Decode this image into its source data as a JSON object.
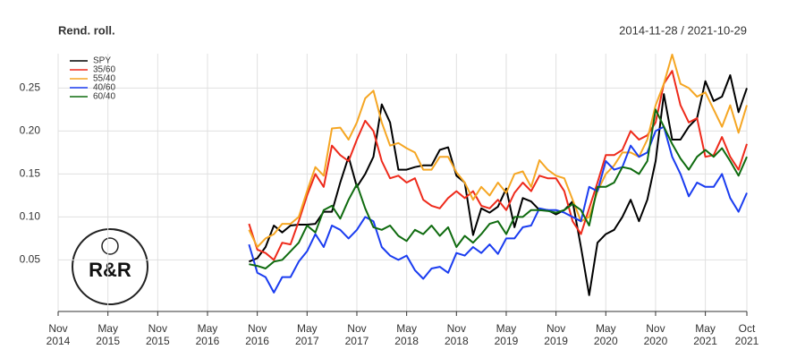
{
  "chart_data": {
    "type": "line",
    "title": "Rend. roll.",
    "subtitle": "2014-11-28 / 2021-10-29",
    "x": [
      "2016-10",
      "2016-11",
      "2016-12",
      "2017-01",
      "2017-02",
      "2017-03",
      "2017-04",
      "2017-05",
      "2017-06",
      "2017-07",
      "2017-08",
      "2017-09",
      "2017-10",
      "2017-11",
      "2017-12",
      "2018-01",
      "2018-02",
      "2018-03",
      "2018-04",
      "2018-05",
      "2018-06",
      "2018-07",
      "2018-08",
      "2018-09",
      "2018-10",
      "2018-11",
      "2018-12",
      "2019-01",
      "2019-02",
      "2019-03",
      "2019-04",
      "2019-05",
      "2019-06",
      "2019-07",
      "2019-08",
      "2019-09",
      "2019-10",
      "2019-11",
      "2019-12",
      "2020-01",
      "2020-02",
      "2020-03",
      "2020-04",
      "2020-05",
      "2020-06",
      "2020-07",
      "2020-08",
      "2020-09",
      "2020-10",
      "2020-11",
      "2020-12",
      "2021-01",
      "2021-02",
      "2021-03",
      "2021-04",
      "2021-05",
      "2021-06",
      "2021-07",
      "2021-08",
      "2021-09",
      "2021-10"
    ],
    "series": [
      {
        "name": "SPY",
        "color": "#000000",
        "values": [
          0.048,
          0.052,
          0.065,
          0.09,
          0.082,
          0.09,
          0.091,
          0.091,
          0.092,
          0.106,
          0.106,
          0.14,
          0.17,
          0.135,
          0.15,
          0.17,
          0.231,
          0.21,
          0.155,
          0.155,
          0.158,
          0.16,
          0.16,
          0.178,
          0.181,
          0.148,
          0.14,
          0.079,
          0.11,
          0.105,
          0.112,
          0.133,
          0.088,
          0.122,
          0.118,
          0.108,
          0.108,
          0.103,
          0.108,
          0.118,
          0.065,
          0.009,
          0.07,
          0.08,
          0.085,
          0.1,
          0.12,
          0.095,
          0.12,
          0.165,
          0.243,
          0.19,
          0.19,
          0.205,
          0.215,
          0.258,
          0.235,
          0.24,
          0.265,
          0.222,
          0.25
        ]
      },
      {
        "name": "35/60",
        "color": "#ee2a1b",
        "values": [
          0.092,
          0.062,
          0.058,
          0.05,
          0.07,
          0.068,
          0.095,
          0.125,
          0.15,
          0.135,
          0.183,
          0.172,
          0.165,
          0.19,
          0.212,
          0.2,
          0.165,
          0.145,
          0.148,
          0.14,
          0.145,
          0.12,
          0.113,
          0.11,
          0.122,
          0.13,
          0.122,
          0.13,
          0.113,
          0.11,
          0.12,
          0.108,
          0.128,
          0.14,
          0.13,
          0.148,
          0.145,
          0.145,
          0.13,
          0.095,
          0.08,
          0.11,
          0.14,
          0.172,
          0.172,
          0.178,
          0.2,
          0.19,
          0.195,
          0.21,
          0.255,
          0.27,
          0.23,
          0.21,
          0.215,
          0.17,
          0.172,
          0.193,
          0.17,
          0.155,
          0.185
        ]
      },
      {
        "name": "55/40",
        "color": "#f5a623",
        "values": [
          0.085,
          0.065,
          0.075,
          0.08,
          0.092,
          0.092,
          0.1,
          0.13,
          0.158,
          0.148,
          0.203,
          0.204,
          0.19,
          0.21,
          0.238,
          0.247,
          0.21,
          0.183,
          0.186,
          0.18,
          0.175,
          0.155,
          0.155,
          0.17,
          0.17,
          0.152,
          0.14,
          0.12,
          0.135,
          0.125,
          0.14,
          0.128,
          0.15,
          0.153,
          0.135,
          0.166,
          0.155,
          0.148,
          0.145,
          0.12,
          0.095,
          0.1,
          0.13,
          0.15,
          0.16,
          0.175,
          0.175,
          0.17,
          0.19,
          0.23,
          0.255,
          0.289,
          0.255,
          0.25,
          0.24,
          0.245,
          0.225,
          0.205,
          0.23,
          0.198,
          0.23
        ]
      },
      {
        "name": "40/60",
        "color": "#1a3cf0",
        "values": [
          0.068,
          0.035,
          0.03,
          0.012,
          0.03,
          0.03,
          0.048,
          0.06,
          0.08,
          0.065,
          0.09,
          0.085,
          0.075,
          0.085,
          0.1,
          0.095,
          0.065,
          0.055,
          0.05,
          0.055,
          0.038,
          0.028,
          0.04,
          0.042,
          0.035,
          0.058,
          0.055,
          0.065,
          0.058,
          0.068,
          0.057,
          0.075,
          0.075,
          0.088,
          0.09,
          0.11,
          0.108,
          0.108,
          0.105,
          0.1,
          0.095,
          0.135,
          0.13,
          0.165,
          0.155,
          0.158,
          0.183,
          0.17,
          0.175,
          0.2,
          0.205,
          0.17,
          0.15,
          0.124,
          0.14,
          0.135,
          0.135,
          0.15,
          0.122,
          0.106,
          0.128
        ]
      },
      {
        "name": "60/40",
        "color": "#0f6b0f",
        "values": [
          0.045,
          0.043,
          0.04,
          0.048,
          0.05,
          0.06,
          0.07,
          0.09,
          0.082,
          0.108,
          0.113,
          0.098,
          0.12,
          0.138,
          0.11,
          0.088,
          0.085,
          0.09,
          0.078,
          0.072,
          0.085,
          0.08,
          0.09,
          0.078,
          0.088,
          0.065,
          0.078,
          0.07,
          0.08,
          0.092,
          0.095,
          0.08,
          0.1,
          0.1,
          0.108,
          0.108,
          0.107,
          0.105,
          0.108,
          0.115,
          0.108,
          0.09,
          0.135,
          0.135,
          0.14,
          0.158,
          0.156,
          0.15,
          0.165,
          0.225,
          0.205,
          0.185,
          0.168,
          0.155,
          0.17,
          0.178,
          0.17,
          0.18,
          0.165,
          0.148,
          0.17
        ]
      }
    ],
    "xlim": [
      "2014-11",
      "2021-10"
    ],
    "xticks": [
      {
        "value": "2014-11",
        "label": "Nov\n2014"
      },
      {
        "value": "2015-05",
        "label": "May\n2015"
      },
      {
        "value": "2015-11",
        "label": "Nov\n2015"
      },
      {
        "value": "2016-05",
        "label": "May\n2016"
      },
      {
        "value": "2016-11",
        "label": "Nov\n2016"
      },
      {
        "value": "2017-05",
        "label": "May\n2017"
      },
      {
        "value": "2017-11",
        "label": "Nov\n2017"
      },
      {
        "value": "2018-05",
        "label": "May\n2018"
      },
      {
        "value": "2018-11",
        "label": "Nov\n2018"
      },
      {
        "value": "2019-05",
        "label": "May\n2019"
      },
      {
        "value": "2019-11",
        "label": "Nov\n2019"
      },
      {
        "value": "2020-05",
        "label": "May\n2020"
      },
      {
        "value": "2020-11",
        "label": "Nov\n2020"
      },
      {
        "value": "2021-05",
        "label": "May\n2021"
      },
      {
        "value": "2021-10",
        "label": "Oct\n2021"
      }
    ],
    "ylim": [
      -0.01,
      0.29
    ],
    "yticks": [
      0.05,
      {
        "value": 0.1,
        "label": "0.10"
      },
      0.15,
      {
        "value": 0.2,
        "label": "0.20"
      },
      0.25
    ],
    "grid": true,
    "legend": "top-left"
  },
  "logo": {
    "text": "R&R"
  }
}
